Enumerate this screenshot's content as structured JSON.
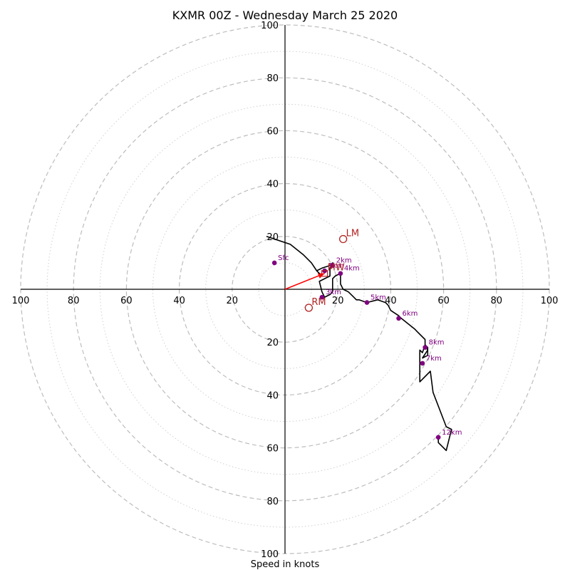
{
  "chart_data": {
    "type": "hodograph",
    "title": "KXMR 00Z - Wednesday March 25 2020",
    "xlabel": "Speed in knots",
    "ring_major": [
      20,
      40,
      60,
      80,
      100
    ],
    "ring_minor": [
      10,
      30,
      50,
      70,
      90
    ],
    "tick_labels": {
      "top": [
        "20",
        "40",
        "60",
        "80",
        "100"
      ],
      "bottom": [
        "20",
        "40",
        "60",
        "80",
        "100"
      ],
      "left": [
        "100",
        "80",
        "60",
        "40",
        "20"
      ],
      "right": [
        "20",
        "40",
        "60",
        "80",
        "100"
      ]
    },
    "xlim": [
      -100,
      100
    ],
    "ylim": [
      -100,
      100
    ],
    "grid": true,
    "trace_color": "#000000",
    "label_color": "#800080",
    "motion_color": "#b22222",
    "vector_color": "#ff0000",
    "trace": [
      [
        -7,
        20
      ],
      [
        2,
        17
      ],
      [
        7,
        13
      ],
      [
        10,
        10
      ],
      [
        12,
        7
      ],
      [
        13,
        6
      ],
      [
        12,
        7
      ],
      [
        14,
        8
      ],
      [
        17,
        9
      ],
      [
        18,
        10
      ],
      [
        17,
        8
      ],
      [
        17,
        5
      ],
      [
        13,
        3
      ],
      [
        13,
        3
      ],
      [
        14,
        -1
      ],
      [
        15,
        -3
      ],
      [
        17,
        -2
      ],
      [
        18,
        -1
      ],
      [
        18,
        4
      ],
      [
        19,
        5
      ],
      [
        21,
        6
      ],
      [
        21,
        5
      ],
      [
        21,
        2
      ],
      [
        22,
        0
      ],
      [
        24,
        -1
      ],
      [
        26,
        -3
      ],
      [
        27,
        -4
      ],
      [
        28,
        -4
      ],
      [
        31,
        -5
      ],
      [
        35,
        -4
      ],
      [
        38,
        -5
      ],
      [
        39,
        -6
      ],
      [
        40,
        -8
      ],
      [
        43,
        -10
      ],
      [
        44,
        -11
      ],
      [
        49,
        -15
      ],
      [
        50,
        -16
      ],
      [
        53,
        -19
      ],
      [
        53,
        -21
      ],
      [
        54,
        -23
      ],
      [
        52,
        -26
      ],
      [
        54,
        -25
      ],
      [
        54,
        -22
      ],
      [
        53,
        -21
      ],
      [
        52,
        -24
      ],
      [
        51,
        -23
      ],
      [
        51,
        -35
      ],
      [
        55,
        -31
      ],
      [
        56,
        -39
      ],
      [
        61,
        -52
      ],
      [
        63,
        -53
      ],
      [
        61,
        -61
      ],
      [
        58,
        -58
      ],
      [
        58,
        -56
      ]
    ],
    "height_markers": [
      {
        "label": "Sfc",
        "x": -4,
        "y": 10
      },
      {
        "label": "1km",
        "x": 15,
        "y": 7
      },
      {
        "label": "2km",
        "x": 18,
        "y": 9
      },
      {
        "label": "3km",
        "x": 14,
        "y": -3
      },
      {
        "label": "4km",
        "x": 21,
        "y": 6
      },
      {
        "label": "5km",
        "x": 31,
        "y": -5
      },
      {
        "label": "6km",
        "x": 43,
        "y": -11
      },
      {
        "label": "7km",
        "x": 52,
        "y": -28
      },
      {
        "label": "8km",
        "x": 53,
        "y": -22
      },
      {
        "label": "12km",
        "x": 58,
        "y": -56
      }
    ],
    "storm_motion": [
      {
        "label": "LM",
        "x": 22,
        "y": 19
      },
      {
        "label": "RM",
        "x": 9,
        "y": -7
      },
      {
        "label": "MW",
        "x": 15,
        "y": 6
      }
    ],
    "mean_vector": {
      "x": 15,
      "y": 6
    }
  }
}
